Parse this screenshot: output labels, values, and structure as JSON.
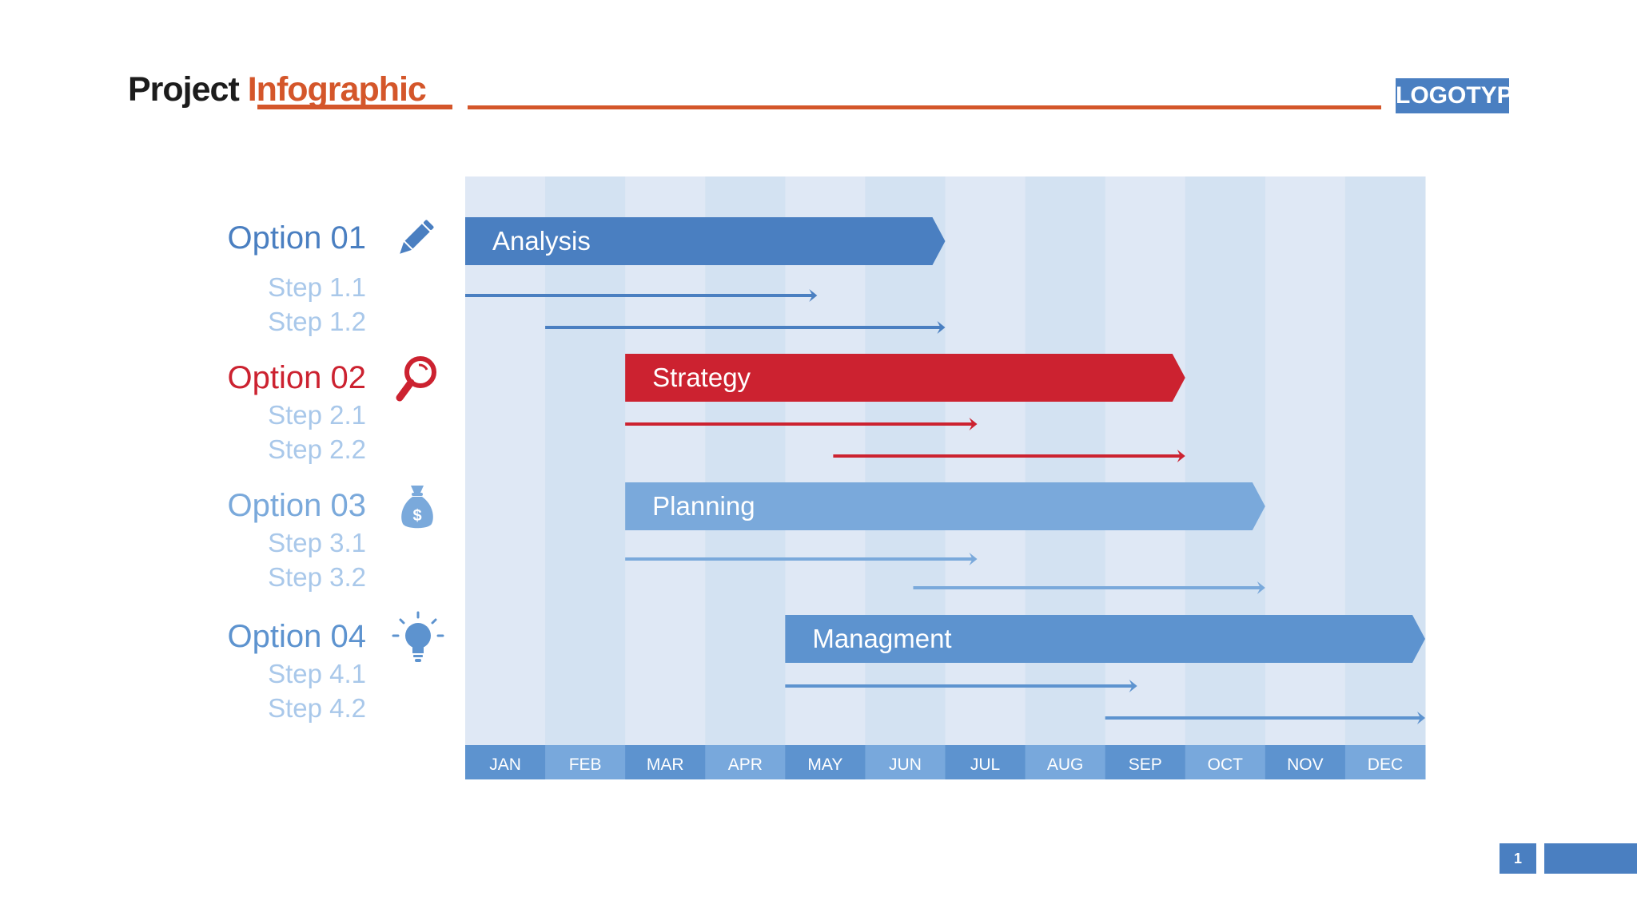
{
  "header": {
    "title_part1": "Project",
    "title_part2": "Infographic",
    "logo": "LOGOTYPE"
  },
  "options": [
    {
      "label": "Option 01",
      "icon": "pencil-icon",
      "color": "#4a7fc1",
      "steps": [
        {
          "label": "Step 1.1"
        },
        {
          "label": "Step 1.2"
        }
      ]
    },
    {
      "label": "Option 02",
      "icon": "magnifier-icon",
      "color": "#cc2230",
      "steps": [
        {
          "label": "Step 2.1"
        },
        {
          "label": "Step 2.2"
        }
      ]
    },
    {
      "label": "Option 03",
      "icon": "money-bag-icon",
      "color": "#7aa9db",
      "steps": [
        {
          "label": "Step 3.1"
        },
        {
          "label": "Step 3.2"
        }
      ]
    },
    {
      "label": "Option 04",
      "icon": "lightbulb-icon",
      "color": "#5d93cf",
      "steps": [
        {
          "label": "Step 4.1"
        },
        {
          "label": "Step 4.2"
        }
      ]
    }
  ],
  "chart_data": {
    "type": "gantt",
    "categories": [
      "JAN",
      "FEB",
      "MAR",
      "APR",
      "MAY",
      "JUN",
      "JUL",
      "AUG",
      "SEP",
      "OCT",
      "NOV",
      "DEC"
    ],
    "unit": "month index (0 = start of JAN, 12 = end of DEC)",
    "tasks": [
      {
        "name": "Analysis",
        "option": "Option 01",
        "start": 0,
        "end": 6.0,
        "color": "#4a7fc1",
        "steps": [
          {
            "name": "Step 1.1",
            "start": 0,
            "end": 4.4
          },
          {
            "name": "Step 1.2",
            "start": 1,
            "end": 6.0
          }
        ]
      },
      {
        "name": "Strategy",
        "option": "Option 02",
        "start": 2,
        "end": 9.0,
        "color": "#cc2230",
        "steps": [
          {
            "name": "Step 2.1",
            "start": 2,
            "end": 6.4
          },
          {
            "name": "Step 2.2",
            "start": 4.6,
            "end": 9.0
          }
        ]
      },
      {
        "name": "Planning",
        "option": "Option 03",
        "start": 2,
        "end": 10.0,
        "color": "#7aa9db",
        "steps": [
          {
            "name": "Step 3.1",
            "start": 2,
            "end": 6.4
          },
          {
            "name": "Step 3.2",
            "start": 5.6,
            "end": 10.0
          }
        ]
      },
      {
        "name": "Managment",
        "option": "Option 04",
        "start": 4,
        "end": 12.0,
        "color": "#5d93cf",
        "steps": [
          {
            "name": "Step 4.1",
            "start": 4,
            "end": 8.4
          },
          {
            "name": "Step 4.2",
            "start": 8,
            "end": 12.0
          }
        ]
      }
    ]
  },
  "footer": {
    "page_number": "1"
  }
}
